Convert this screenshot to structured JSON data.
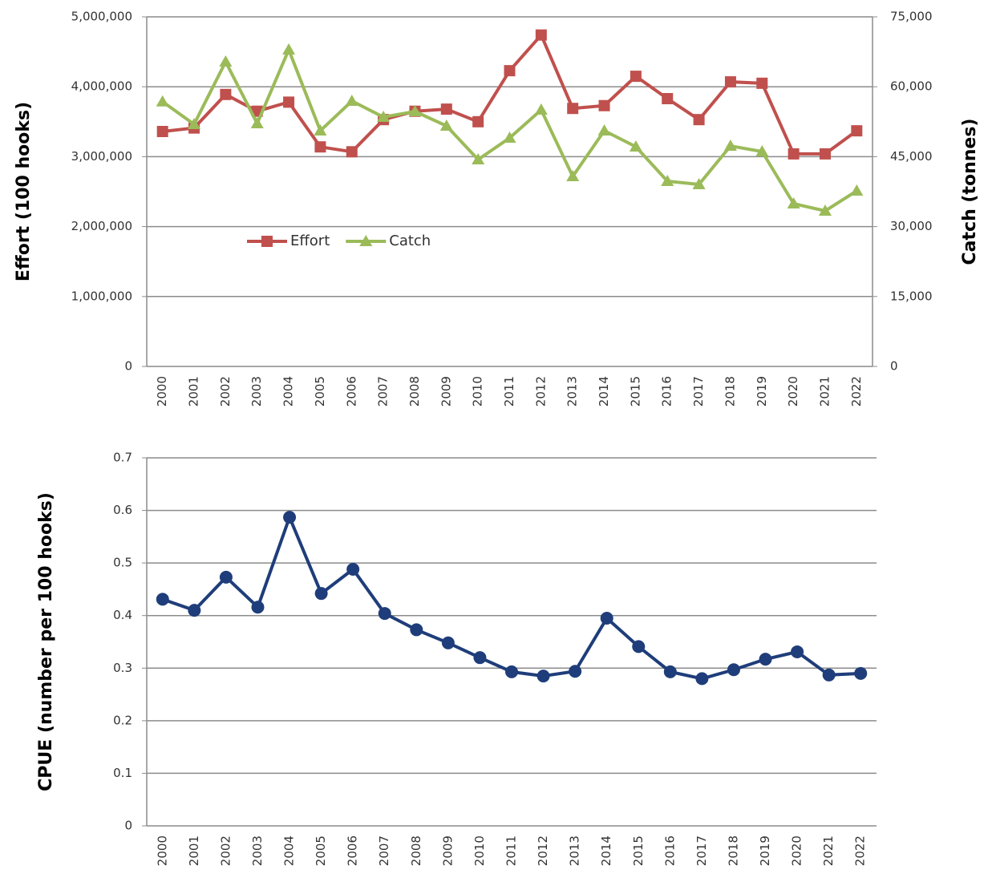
{
  "chart_data": [
    {
      "type": "line",
      "ylabel": "Effort (100 hooks)",
      "y2label": "Catch (tonnes)",
      "categories": [
        "2000",
        "2001",
        "2002",
        "2003",
        "2004",
        "2005",
        "2006",
        "2007",
        "2008",
        "2009",
        "2010",
        "2011",
        "2012",
        "2013",
        "2014",
        "2015",
        "2016",
        "2017",
        "2018",
        "2019",
        "2020",
        "2021",
        "2022"
      ],
      "series": [
        {
          "name": "Effort",
          "color": "#c0504d",
          "marker": "square",
          "values": [
            3360000,
            3410000,
            3890000,
            3650000,
            3780000,
            3140000,
            3070000,
            3530000,
            3650000,
            3680000,
            3500000,
            4230000,
            4740000,
            3690000,
            3730000,
            4150000,
            3830000,
            3530000,
            4070000,
            4050000,
            3040000,
            3040000,
            3370000
          ]
        },
        {
          "name": "Catch",
          "color": "#9bbb59",
          "marker": "triangle",
          "axis": "y2",
          "values": [
            56800,
            51950,
            65370,
            52120,
            67950,
            50570,
            56940,
            53500,
            54700,
            51600,
            44380,
            49020,
            55050,
            40770,
            50570,
            47130,
            39740,
            39050,
            47300,
            46100,
            34920,
            33370,
            37670
          ]
        }
      ],
      "ylim": [
        0,
        5000000
      ],
      "yticks": [
        0,
        {
          "value": 1000000,
          "label": "1,000,000"
        },
        {
          "value": 2000000,
          "label": "2,000,000"
        },
        {
          "value": 3000000,
          "label": "3,000,000"
        },
        {
          "value": 4000000,
          "label": "4,000,000"
        },
        {
          "value": 5000000,
          "label": "5,000,000"
        }
      ],
      "y2lim": [
        0,
        75000
      ],
      "y2ticks": [
        0,
        {
          "value": 15000,
          "label": "15,000"
        },
        {
          "value": 30000,
          "label": "30,000"
        },
        {
          "value": 45000,
          "label": "45,000"
        },
        {
          "value": 60000,
          "label": "60,000"
        },
        {
          "value": 75000,
          "label": "75,000"
        }
      ],
      "grid": true,
      "legend": "middle-left"
    },
    {
      "type": "line",
      "ylabel": "CPUE (number per 100 hooks)",
      "categories": [
        "2000",
        "2001",
        "2002",
        "2003",
        "2004",
        "2005",
        "2006",
        "2007",
        "2008",
        "2009",
        "2010",
        "2011",
        "2012",
        "2013",
        "2014",
        "2015",
        "2016",
        "2017",
        "2018",
        "2019",
        "2020",
        "2021",
        "2022"
      ],
      "series": [
        {
          "color": "#1f3d7a",
          "marker": "circle",
          "values": [
            0.431,
            0.41,
            0.473,
            0.416,
            0.587,
            0.442,
            0.488,
            0.404,
            0.373,
            0.348,
            0.32,
            0.293,
            0.285,
            0.294,
            0.395,
            0.341,
            0.293,
            0.28,
            0.297,
            0.317,
            0.331,
            0.287,
            0.29
          ]
        }
      ],
      "ylim": [
        0,
        0.7
      ],
      "yticks": [
        0,
        0.1,
        0.2,
        0.3,
        0.4,
        0.5,
        0.6,
        0.7
      ],
      "grid": true
    }
  ]
}
